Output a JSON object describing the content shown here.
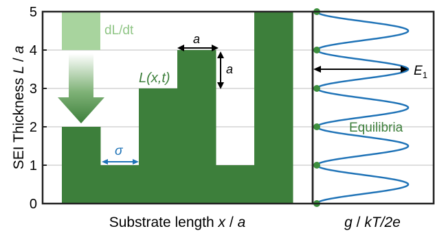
{
  "chart_data": {
    "type": "diagram",
    "left_panel": {
      "ylabel_text": "SEI Thickness",
      "ylabel_var": "L",
      "ylabel_sep": "/",
      "ylabel_unit": "a",
      "xlabel_text": "Substrate length",
      "xlabel_var": "x",
      "xlabel_sep": "/",
      "xlabel_unit": "a",
      "y_ticks": [
        "0",
        "1",
        "2",
        "3",
        "4",
        "5"
      ],
      "ylim": [
        0,
        5
      ],
      "gridlines_y": [
        1,
        2,
        3,
        4
      ],
      "steps": [
        {
          "x0": 0,
          "x1": 1,
          "height": 2
        },
        {
          "x0": 1,
          "x1": 2,
          "height": 1
        },
        {
          "x0": 2,
          "x1": 3,
          "height": 3
        },
        {
          "x0": 3,
          "x1": 4,
          "height": 4
        },
        {
          "x0": 4,
          "x1": 5,
          "height": 1
        },
        {
          "x0": 5,
          "x1": 6,
          "height": 5
        }
      ],
      "fill_color": "#3d7f3b",
      "growth_label": "dL/dt",
      "surface_label": "L(x,t)",
      "step_width_label": "a",
      "step_height_label": "a",
      "sigma_label": "σ",
      "arrow_color_dark": "#3d7f3b",
      "arrow_color_light": "#a8d49e"
    },
    "right_panel": {
      "xlabel_var": "g",
      "xlabel_sep": "/",
      "xlabel_unit": "kT/2e",
      "curve_color": "#1f73b7",
      "equilibria_label": "Equilibria",
      "equilibria_y": [
        0,
        1,
        2,
        3,
        4,
        5
      ],
      "barrier_label": "E",
      "barrier_subscript": "1",
      "barrier_y": 3.5
    }
  }
}
